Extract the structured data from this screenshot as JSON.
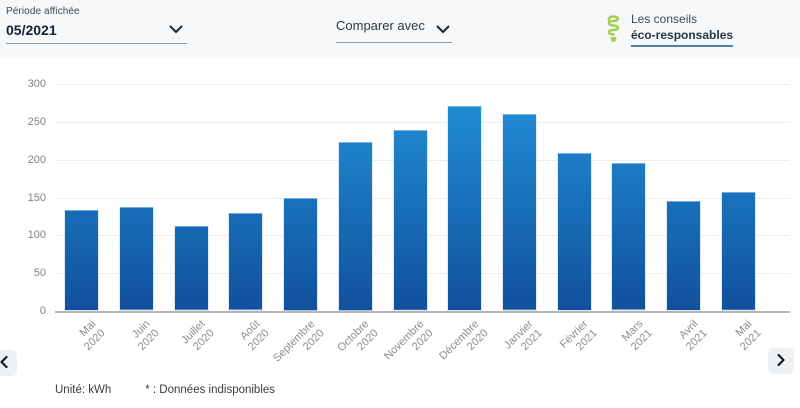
{
  "header": {
    "period": {
      "label": "Période affichée",
      "value": "05/2021"
    },
    "compare": {
      "label": "Comparer avec"
    },
    "conseils": {
      "line1": "Les conseils",
      "line2": "éco-responsables"
    }
  },
  "chart_data": {
    "type": "bar",
    "title": "",
    "xlabel": "",
    "ylabel": "kWh",
    "unit": "kWh",
    "categories": [
      "Mai 2020",
      "Juin 2020",
      "Juillet 2020",
      "Août 2020",
      "Septembre 2020",
      "Octobre 2020",
      "Novembre 2020",
      "Décembre 2020",
      "Janvier 2021",
      "Février 2021",
      "Mars 2021",
      "Avril 2021",
      "Mai 2021"
    ],
    "values": [
      134,
      137,
      112,
      129,
      150,
      224,
      239,
      271,
      260,
      209,
      195,
      146,
      157
    ],
    "ylim": [
      0,
      300
    ],
    "yticks": [
      0,
      50,
      100,
      150,
      200,
      250,
      300
    ],
    "grid": "horizontal",
    "legend_position": "none",
    "bar_color_top": "#2293da",
    "bar_color_bottom": "#11509d"
  },
  "footer": {
    "unit_note": "Unité: kWh",
    "missing_note": "* : Données indisponibles"
  },
  "icons": {
    "chevron_down": "chevron-down-icon",
    "chevron_left": "chevron-left-icon",
    "chevron_right": "chevron-right-icon",
    "eco_bulb": "eco-lightbulb-icon"
  },
  "colors": {
    "header_bg": "#f7f8fa",
    "bar_gradient_top": "#2293da",
    "bar_gradient_bottom": "#11509d",
    "link_underline": "#4d7fa9",
    "bulb_green": "#a4cf52",
    "gridline": "#ececec",
    "axis_text": "#828282"
  }
}
